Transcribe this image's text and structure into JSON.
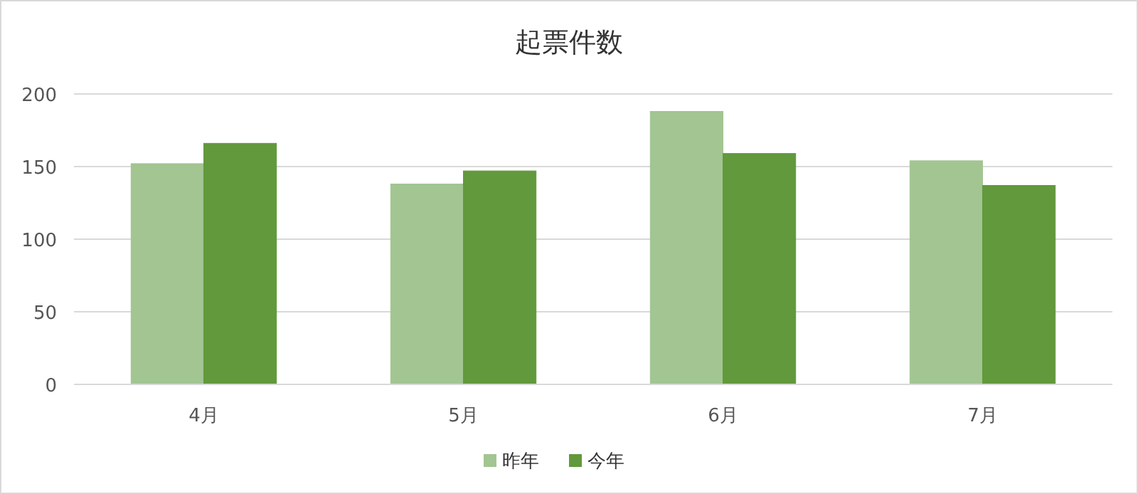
{
  "chart_data": {
    "type": "bar",
    "title": "起票件数",
    "categories": [
      "4月",
      "5月",
      "6月",
      "7月"
    ],
    "series": [
      {
        "name": "昨年",
        "color": "#a2c592",
        "values": [
          152,
          138,
          188,
          154
        ]
      },
      {
        "name": "今年",
        "color": "#62993c",
        "values": [
          166,
          147,
          159,
          137
        ]
      }
    ],
    "ylim": [
      0,
      200
    ],
    "yticks": [
      0,
      50,
      100,
      150,
      200
    ],
    "grid": "y",
    "legend": "bottom"
  }
}
